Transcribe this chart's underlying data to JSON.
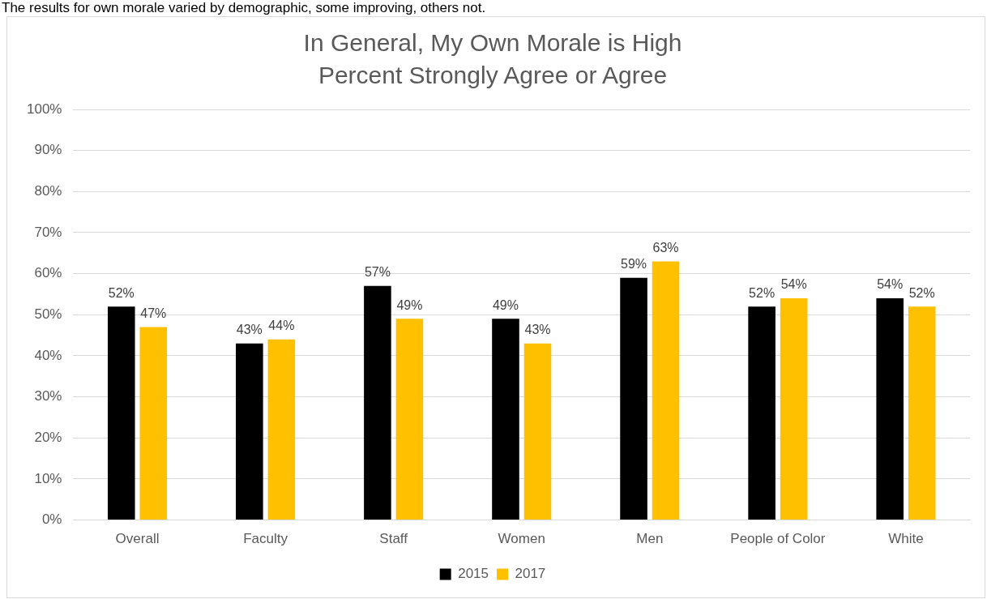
{
  "chart_data": {
    "type": "bar",
    "title": "In General, My Own Morale is High",
    "subtitle": "Percent Strongly Agree or Agree",
    "annotations": [
      "The results for own morale varied by demographic, some improving, others not."
    ],
    "categories": [
      "Overall",
      "Faculty",
      "Staff",
      "Women",
      "Men",
      "People of Color",
      "White"
    ],
    "series": [
      {
        "name": "2015",
        "color": "#000000",
        "values": [
          52,
          43,
          57,
          49,
          59,
          52,
          54
        ],
        "value_labels": [
          "52%",
          "43%",
          "57%",
          "49%",
          "59%",
          "52%",
          "54%"
        ]
      },
      {
        "name": "2017",
        "color": "#ffc000",
        "values": [
          47,
          44,
          49,
          43,
          63,
          54,
          52
        ],
        "value_labels": [
          "47%",
          "44%",
          "49%",
          "43%",
          "63%",
          "54%",
          "52%"
        ]
      }
    ],
    "ylim": [
      0,
      100
    ],
    "yticks": [
      {
        "value": 0,
        "label": "0%"
      },
      {
        "value": 10,
        "label": "10%"
      },
      {
        "value": 20,
        "label": "20%"
      },
      {
        "value": 30,
        "label": "30%"
      },
      {
        "value": 40,
        "label": "40%"
      },
      {
        "value": 50,
        "label": "50%"
      },
      {
        "value": 60,
        "label": "60%"
      },
      {
        "value": 70,
        "label": "70%"
      },
      {
        "value": 80,
        "label": "80%"
      },
      {
        "value": 90,
        "label": "90%"
      },
      {
        "value": 100,
        "label": "100%"
      }
    ],
    "grid": "y",
    "legend": "bottom"
  }
}
